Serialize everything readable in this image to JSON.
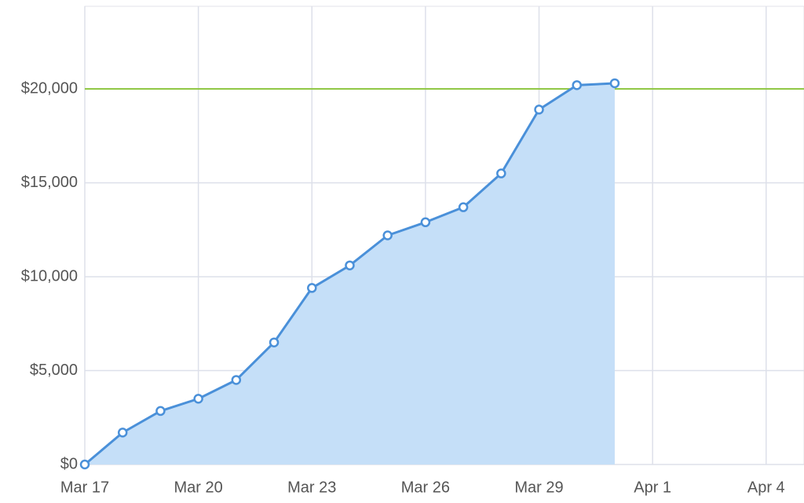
{
  "chart_data": {
    "type": "area",
    "x": [
      "Mar 17",
      "Mar 18",
      "Mar 19",
      "Mar 20",
      "Mar 21",
      "Mar 22",
      "Mar 23",
      "Mar 24",
      "Mar 25",
      "Mar 26",
      "Mar 27",
      "Mar 28",
      "Mar 29",
      "Mar 30",
      "Mar 31"
    ],
    "series": [
      {
        "color": "#4a90d9",
        "fill": "#c5dff8",
        "values": [
          0,
          1700,
          2850,
          3500,
          4500,
          6500,
          9400,
          10600,
          12200,
          12900,
          13700,
          15500,
          18900,
          20200,
          20300
        ]
      }
    ],
    "xlim": [
      "Mar 17",
      "Apr 5"
    ],
    "xticks": [
      "Mar 17",
      "Mar 20",
      "Mar 23",
      "Mar 26",
      "Mar 29",
      "Apr 1",
      "Apr 4"
    ],
    "ylim": [
      0,
      24400
    ],
    "yticks": [
      {
        "value": 0,
        "label": "$0"
      },
      {
        "value": 5000,
        "label": "$5,000"
      },
      {
        "value": 10000,
        "label": "$10,000"
      },
      {
        "value": 15000,
        "label": "$15,000"
      },
      {
        "value": 20000,
        "label": "$20,000"
      }
    ],
    "reference_line": {
      "value": 20000,
      "color": "#8dc63f"
    },
    "grid": true
  }
}
